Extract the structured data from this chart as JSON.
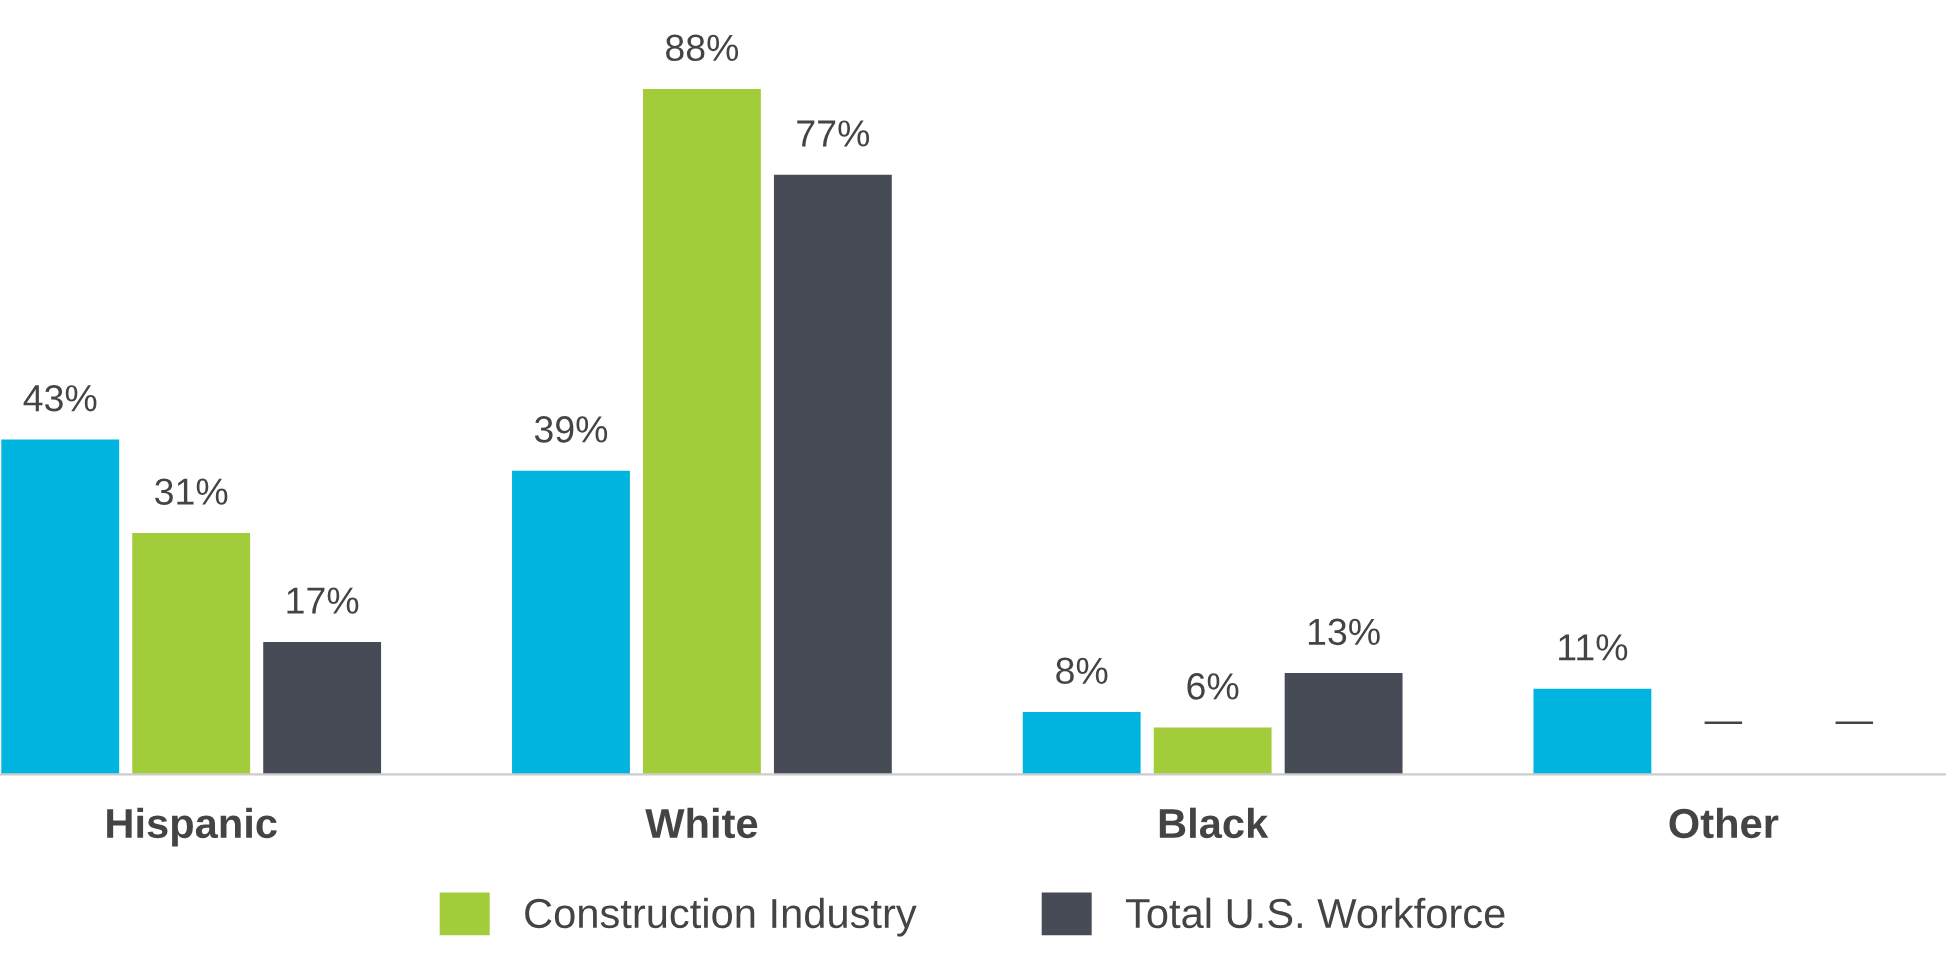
{
  "chart_data": {
    "type": "bar",
    "categories": [
      "Hispanic",
      "White",
      "Black",
      "Other"
    ],
    "series": [
      {
        "color": "#00b4e0",
        "values": [
          43,
          39,
          8,
          11
        ],
        "value_labels": [
          "43%",
          "39%",
          "8%",
          "11%"
        ]
      },
      {
        "name": "Construction Industry",
        "color": "#a3cc3a",
        "values": [
          31,
          88,
          6,
          null
        ],
        "value_labels": [
          "31%",
          "88%",
          "6%",
          "—"
        ]
      },
      {
        "name": "Total U.S. Workforce",
        "color": "#474b55",
        "values": [
          17,
          77,
          13,
          null
        ],
        "value_labels": [
          "17%",
          "77%",
          "13%",
          "—"
        ]
      }
    ],
    "legend": "bottom"
  }
}
